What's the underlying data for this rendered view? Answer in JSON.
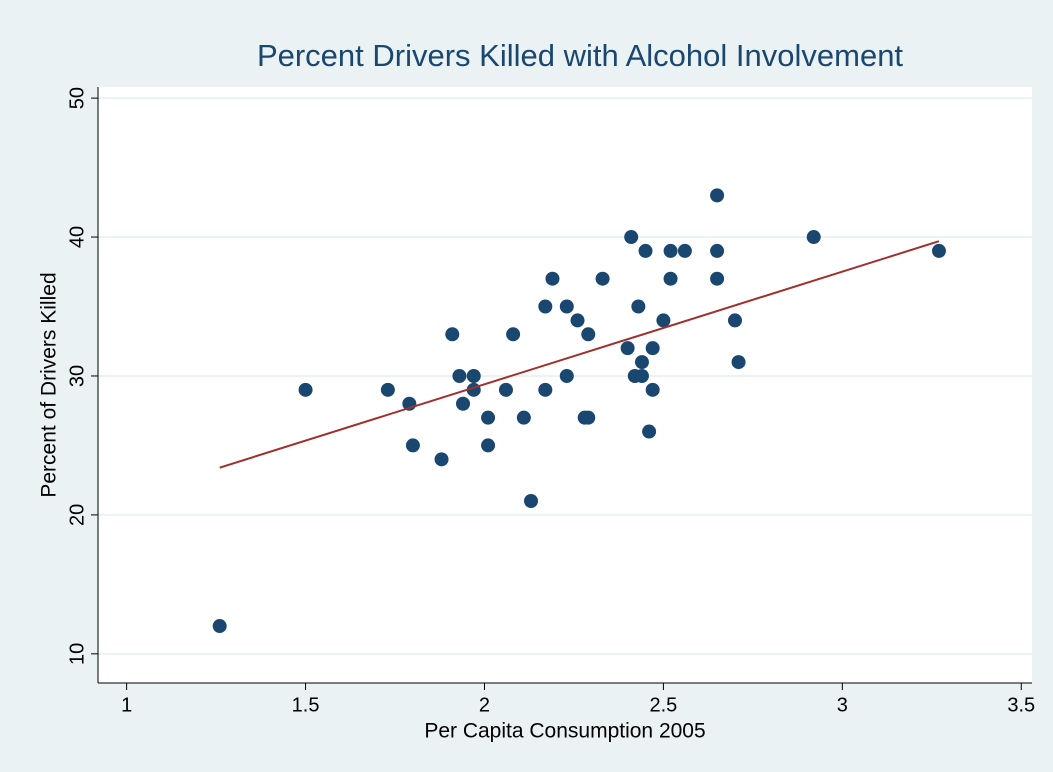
{
  "chart_data": {
    "type": "scatter",
    "title": "Percent Drivers Killed with Alcohol Involvement",
    "x_label": "Per Capita Consumption 2005",
    "y_label": "Percent of Drivers Killed",
    "color": "#1a476f",
    "x": [
      1.26,
      1.5,
      1.73,
      1.79,
      1.8,
      1.88,
      1.91,
      1.93,
      1.94,
      1.97,
      1.97,
      2.01,
      2.01,
      2.06,
      2.08,
      2.11,
      2.13,
      2.17,
      2.17,
      2.19,
      2.23,
      2.23,
      2.26,
      2.28,
      2.29,
      2.29,
      2.33,
      2.4,
      2.41,
      2.42,
      2.43,
      2.44,
      2.44,
      2.45,
      2.46,
      2.47,
      2.47,
      2.5,
      2.52,
      2.52,
      2.56,
      2.65,
      2.65,
      2.65,
      2.7,
      2.71,
      2.92,
      3.27
    ],
    "values": [
      12,
      29,
      29,
      28,
      25,
      24,
      33,
      30,
      28,
      30,
      29,
      27,
      25,
      29,
      33,
      27,
      21,
      35,
      29,
      37,
      35,
      30,
      34,
      27,
      27,
      33,
      37,
      32,
      40,
      30,
      35,
      30,
      31,
      39,
      26,
      32,
      29,
      34,
      39,
      37,
      39,
      43,
      39,
      37,
      34,
      31,
      40,
      39
    ],
    "fit": {
      "x": [
        1.26,
        3.27
      ],
      "y": [
        23.4,
        39.7
      ],
      "color": "#a0302e"
    },
    "xlim": [
      0.92,
      3.53
    ],
    "ylim": [
      7.9,
      50.8
    ],
    "xticks": [
      1,
      1.5,
      2,
      2.5,
      3,
      3.5
    ],
    "yticks": [
      10,
      20,
      30,
      40,
      50
    ],
    "grid": true
  }
}
